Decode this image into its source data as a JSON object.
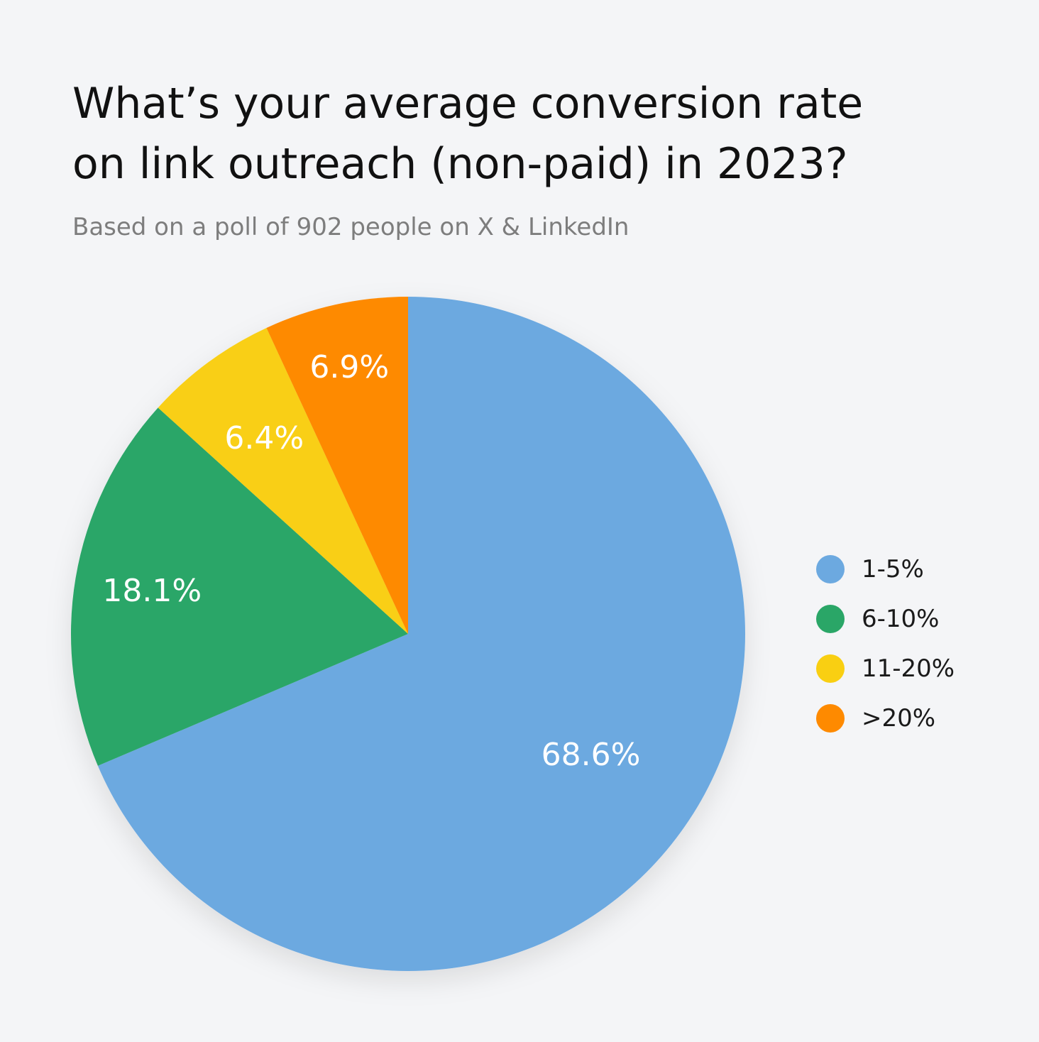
{
  "chart_data": {
    "type": "pie",
    "title_lines": [
      "What’s your average conversion rate",
      "on link outreach (non-paid) in 2023?"
    ],
    "subtitle": "Based on a poll of 902 people on X & LinkedIn",
    "legend_position": "right",
    "slices": [
      {
        "label": "1-5%",
        "value": 68.6,
        "display": "68.6%",
        "color": "#6ca9e0"
      },
      {
        "label": "6-10%",
        "value": 18.1,
        "display": "18.1%",
        "color": "#2aa667"
      },
      {
        "label": "11-20%",
        "value": 6.4,
        "display": "6.4%",
        "color": "#f9cf12"
      },
      {
        "label": ">20%",
        "value": 6.9,
        "display": "6.9%",
        "color": "#fe8a00"
      }
    ]
  }
}
